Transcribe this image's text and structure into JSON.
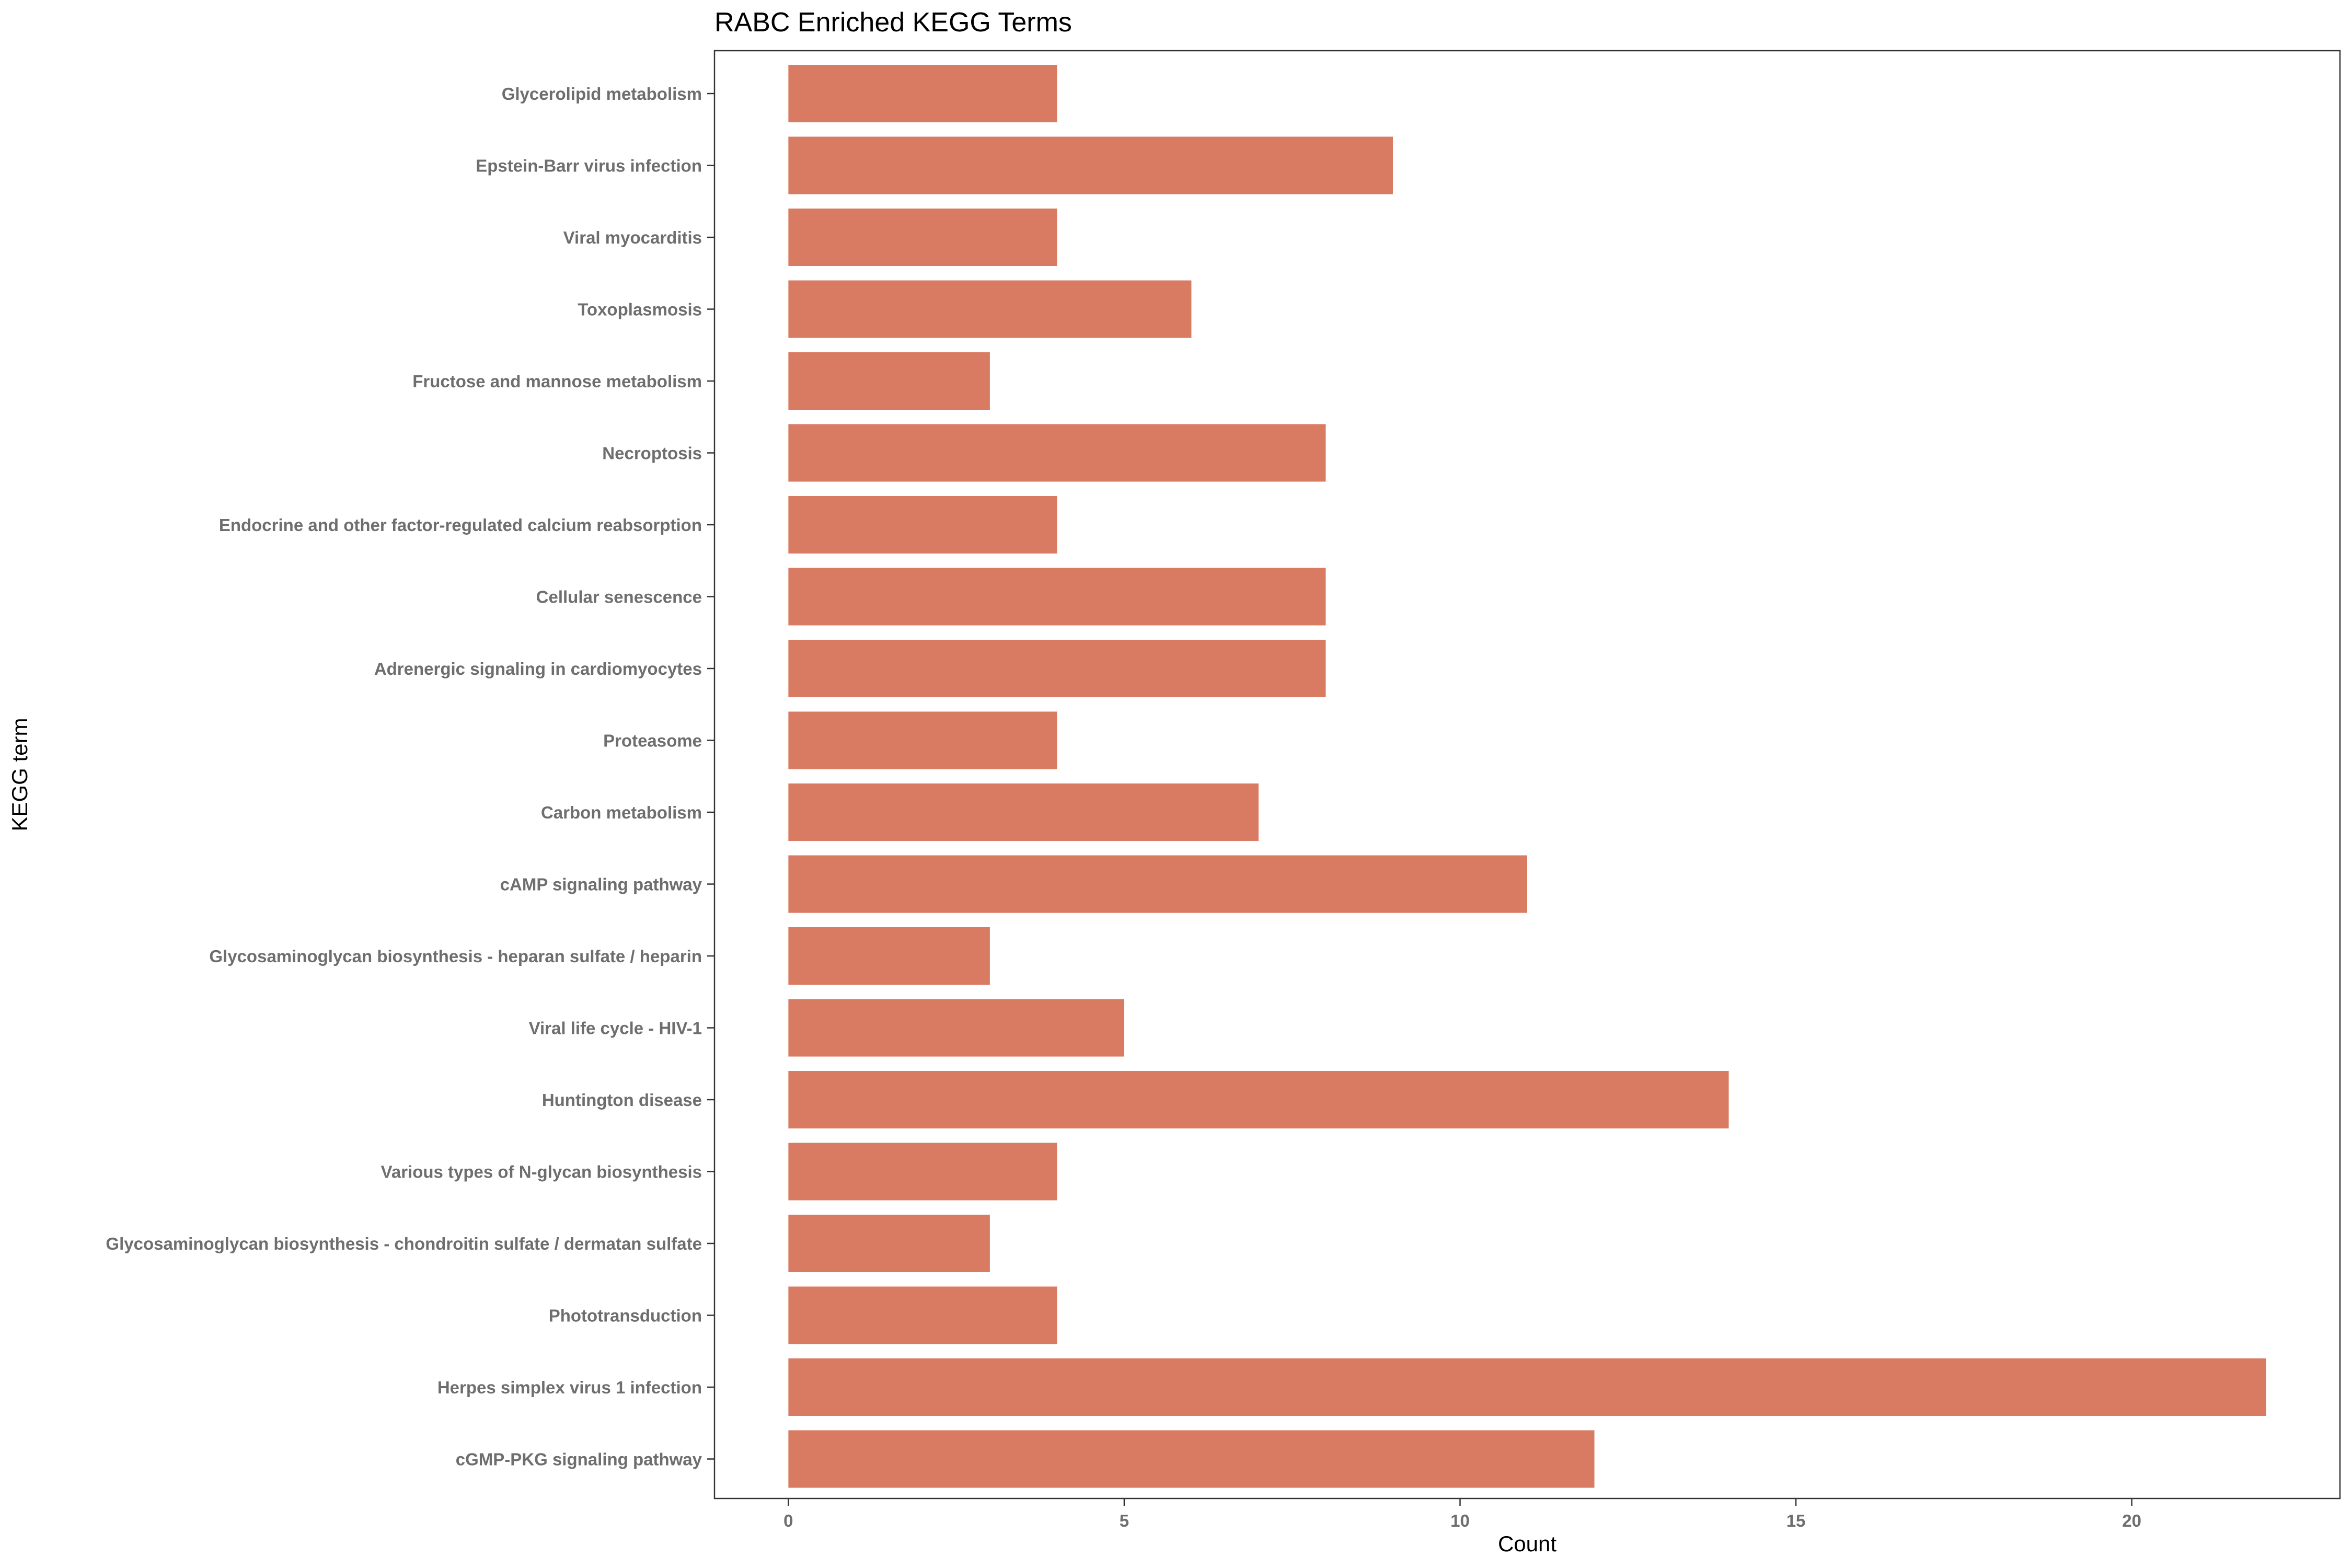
{
  "chart_data": {
    "type": "bar",
    "orientation": "horizontal",
    "title": "RABC Enriched KEGG Terms",
    "xlabel": "Count",
    "ylabel": "KEGG term",
    "categories": [
      "Glycerolipid metabolism",
      "Epstein-Barr virus infection",
      "Viral myocarditis",
      "Toxoplasmosis",
      "Fructose and mannose metabolism",
      "Necroptosis",
      "Endocrine and other factor-regulated calcium reabsorption",
      "Cellular senescence",
      "Adrenergic signaling in cardiomyocytes",
      "Proteasome",
      "Carbon metabolism",
      "cAMP signaling pathway",
      "Glycosaminoglycan biosynthesis - heparan sulfate / heparin",
      "Viral life cycle - HIV-1",
      "Huntington disease",
      "Various types of N-glycan biosynthesis",
      "Glycosaminoglycan biosynthesis - chondroitin sulfate / dermatan sulfate",
      "Phototransduction",
      "Herpes simplex virus 1 infection",
      "cGMP-PKG signaling pathway"
    ],
    "values": [
      4,
      9,
      4,
      6,
      3,
      8,
      4,
      8,
      8,
      4,
      7,
      11,
      3,
      5,
      14,
      4,
      3,
      4,
      22,
      12
    ],
    "xlim": [
      -1.1,
      23.1
    ],
    "xticks": [
      0,
      5,
      10,
      15,
      20
    ],
    "xtick_labels": [
      "0",
      "5",
      "10",
      "15",
      "20"
    ],
    "bar_color": "#d97a62",
    "grid": false,
    "legend": "none"
  }
}
